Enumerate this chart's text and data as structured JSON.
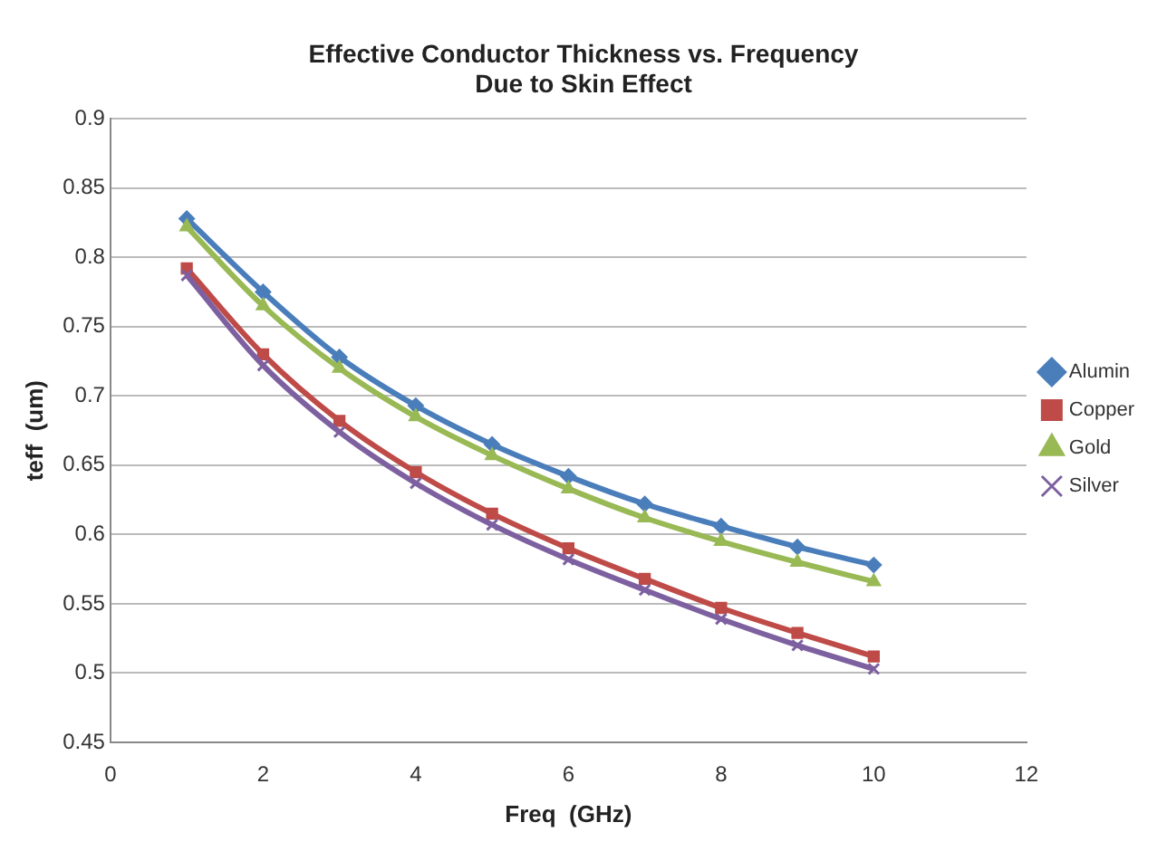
{
  "chart_data": {
    "type": "line",
    "title": "Effective Conductor Thickness vs. Frequency",
    "subtitle": "Due to Skin Effect",
    "xlabel": "Freq  (GHz)",
    "ylabel": "teff  (um)",
    "x": [
      1,
      2,
      3,
      4,
      5,
      6,
      7,
      8,
      9,
      10
    ],
    "series": [
      {
        "name": "Alumin",
        "color": "#4a7ebb",
        "marker": "diamond",
        "values": [
          0.828,
          0.775,
          0.728,
          0.693,
          0.665,
          0.642,
          0.622,
          0.606,
          0.591,
          0.578
        ]
      },
      {
        "name": "Copper",
        "color": "#be4b48",
        "marker": "square",
        "values": [
          0.792,
          0.73,
          0.682,
          0.645,
          0.615,
          0.59,
          0.568,
          0.547,
          0.529,
          0.512
        ]
      },
      {
        "name": "Gold",
        "color": "#98b954",
        "marker": "triangle",
        "values": [
          0.822,
          0.765,
          0.72,
          0.685,
          0.657,
          0.633,
          0.612,
          0.595,
          0.58,
          0.566
        ]
      },
      {
        "name": "Silver",
        "color": "#7d60a0",
        "marker": "cross",
        "values": [
          0.787,
          0.722,
          0.674,
          0.637,
          0.607,
          0.582,
          0.56,
          0.539,
          0.52,
          0.503
        ]
      }
    ],
    "xlim": [
      0,
      12
    ],
    "xticks": [
      0,
      2,
      4,
      6,
      8,
      10,
      12
    ],
    "ylim": [
      0.45,
      0.9
    ],
    "yticks": [
      0.45,
      0.5,
      0.55,
      0.6,
      0.65,
      0.7,
      0.75,
      0.8,
      0.85,
      0.9
    ],
    "grid": "y",
    "legend": "right",
    "line_style": "solid"
  }
}
